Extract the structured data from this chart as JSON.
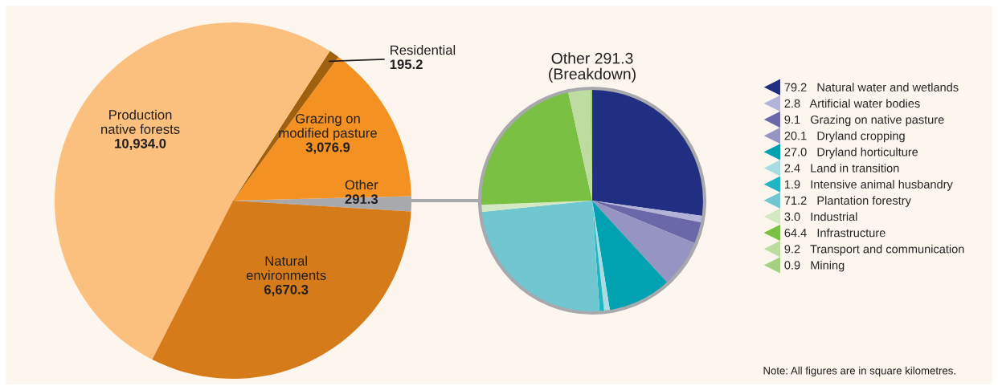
{
  "chart_data": [
    {
      "type": "pie",
      "categories": [
        "Other",
        "Grazing on\nmodified pasture",
        "Residential",
        "Production\nnative forests",
        "Natural\nenvironments"
      ],
      "values": [
        291.3,
        3076.9,
        195.2,
        10934.0,
        6670.3
      ],
      "colors": [
        "#a7a9ac",
        "#f39122",
        "#a0610f",
        "#fbc07d",
        "#d67b1a"
      ],
      "value_labels": [
        "291.3",
        "3,076.9",
        "195.2",
        "10,934.0",
        "6,670.3"
      ],
      "legend": false
    },
    {
      "type": "pie",
      "title": "Other 291.3\n(Breakdown)",
      "categories": [
        "Natural water and wetlands",
        "Artificial water bodies",
        "Grazing on native pasture",
        "Dryland cropping",
        "Dryland horticulture",
        "Land in transition",
        "Intensive animal husbandry",
        "Plantation forestry",
        "Industrial",
        "Infrastructure",
        "Transport and communication",
        "Mining"
      ],
      "values": [
        79.2,
        2.8,
        9.1,
        20.1,
        27.0,
        2.4,
        1.9,
        71.2,
        3.0,
        64.4,
        9.2,
        0.9
      ],
      "colors": [
        "#212f82",
        "#b3b3d9",
        "#6a68a8",
        "#9594c3",
        "#00a1b0",
        "#a8dce3",
        "#1fb5c4",
        "#71c7d0",
        "#d3e8c3",
        "#7ac143",
        "#bcdca0",
        "#a3d17f"
      ],
      "value_labels": [
        "79.2",
        "2.8",
        "9.1",
        "20.1",
        "27.0",
        "2.4",
        "1.9",
        "71.2",
        "3.0",
        "64.4",
        "9.2",
        "0.9"
      ],
      "legend": "right",
      "annotations": [
        "Note: All figures are in square kilometres."
      ]
    }
  ]
}
